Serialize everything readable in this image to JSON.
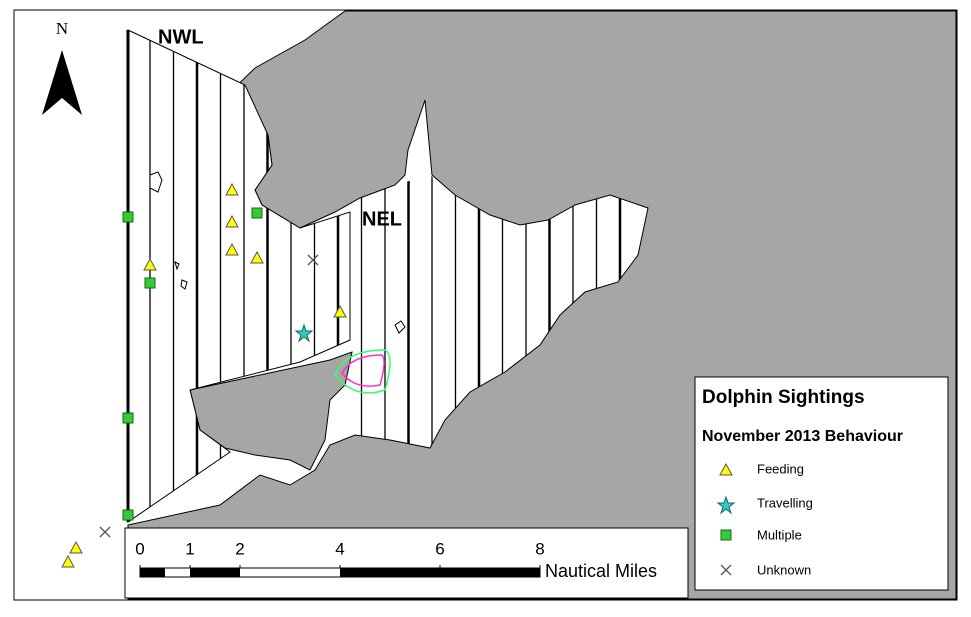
{
  "north_label": "N",
  "labels": {
    "nwl": "NWL",
    "nel": "NEL"
  },
  "legend": {
    "title": "Dolphin Sightings",
    "subtitle": "November 2013 Behaviour",
    "items": [
      "Feeding",
      "Travelling",
      "Multiple",
      "Unknown"
    ]
  },
  "scale_bar": {
    "ticks": [
      0,
      1,
      2,
      4,
      6,
      8
    ],
    "unit": "Nautical Miles"
  }
}
